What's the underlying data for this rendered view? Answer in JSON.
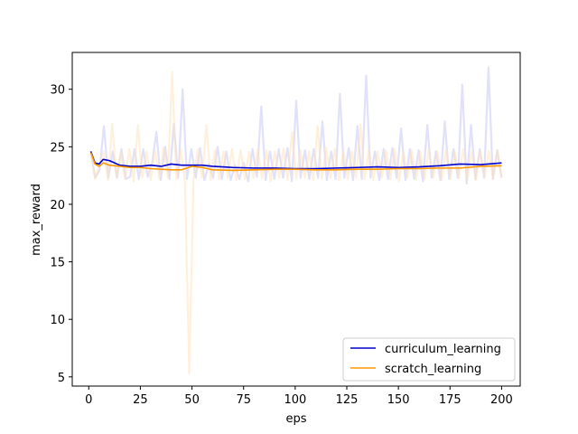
{
  "chart_data": {
    "type": "line",
    "xlabel": "eps",
    "ylabel": "max_reward",
    "xlim": [
      -8,
      209
    ],
    "ylim": [
      4.2,
      33.2
    ],
    "xticks": [
      0,
      25,
      50,
      75,
      100,
      125,
      150,
      175,
      200
    ],
    "yticks": [
      5,
      10,
      15,
      20,
      25,
      30
    ],
    "grid": false,
    "legend_placement": "lower right",
    "series": [
      {
        "name": "curriculum_learning",
        "color": "#0000cc",
        "raw_color": "#c8c8f4",
        "x": [
          1,
          3,
          5,
          7,
          10,
          15,
          20,
          25,
          30,
          35,
          40,
          45,
          50,
          55,
          60,
          70,
          80,
          90,
          100,
          110,
          120,
          130,
          140,
          150,
          160,
          170,
          180,
          190,
          200
        ],
        "values": [
          24.6,
          23.6,
          23.5,
          23.9,
          23.8,
          23.4,
          23.3,
          23.3,
          23.4,
          23.3,
          23.5,
          23.4,
          23.4,
          23.4,
          23.3,
          23.2,
          23.15,
          23.15,
          23.1,
          23.1,
          23.15,
          23.2,
          23.25,
          23.2,
          23.25,
          23.35,
          23.5,
          23.45,
          23.6
        ],
        "raw_values": [
          24.6,
          22.3,
          23.0,
          26.8,
          22.3,
          24.6,
          22.3,
          24.8,
          22.2,
          22.4,
          24.8,
          22.2,
          24.8,
          22.4,
          23.5,
          26.3,
          22.1,
          25.0,
          22.2,
          27.0,
          22.3,
          30.0,
          22.2,
          24.8,
          22.3,
          24.9,
          22.1,
          23.5,
          22.3,
          25.0,
          22.2,
          24.6,
          22.1,
          23.4,
          22.2,
          23.6,
          22.0,
          24.8,
          22.4,
          28.5,
          22.1,
          24.6,
          22.2,
          24.8,
          22.3,
          24.9,
          22.0,
          29.0,
          22.3,
          24.7,
          22.2,
          24.8,
          22.3,
          27.2,
          22.1,
          24.6,
          22.2,
          29.6,
          22.3,
          24.9,
          22.1,
          26.8,
          22.2,
          31.2,
          22.3,
          24.6,
          22.1,
          24.8,
          22.2,
          24.9,
          22.3,
          26.6,
          22.1,
          24.8,
          22.2,
          24.7,
          22.0,
          26.9,
          22.3,
          24.6,
          22.1,
          27.2,
          22.2,
          24.8,
          22.3,
          30.4,
          21.8,
          26.9,
          22.2,
          24.8,
          22.3,
          31.9,
          22.2,
          24.7,
          22.3
        ]
      },
      {
        "name": "scratch_learning",
        "color": "#ff9900",
        "raw_color": "#ffe3bf",
        "x": [
          1,
          3,
          5,
          7,
          10,
          15,
          20,
          25,
          30,
          35,
          40,
          45,
          50,
          55,
          60,
          70,
          80,
          90,
          100,
          110,
          120,
          130,
          140,
          150,
          160,
          170,
          180,
          190,
          200
        ],
        "values": [
          24.5,
          23.5,
          23.3,
          23.6,
          23.4,
          23.3,
          23.2,
          23.2,
          23.1,
          23.05,
          23.0,
          23.0,
          23.3,
          23.2,
          23.0,
          22.95,
          23.0,
          23.05,
          23.05,
          23.0,
          23.0,
          23.05,
          23.05,
          23.1,
          23.1,
          23.15,
          23.15,
          23.3,
          23.35
        ],
        "raw_values": [
          24.5,
          22.2,
          23.5,
          24.6,
          22.1,
          27.0,
          22.3,
          24.5,
          22.2,
          24.8,
          22.0,
          26.9,
          22.3,
          24.6,
          22.1,
          24.7,
          22.2,
          24.9,
          22.3,
          31.5,
          22.2,
          24.8,
          22.0,
          5.3,
          22.2,
          24.8,
          22.3,
          26.9,
          22.1,
          24.7,
          22.2,
          24.6,
          22.3,
          24.8,
          22.1,
          24.7,
          22.2,
          24.6,
          22.3,
          24.8,
          22.2,
          24.7,
          22.0,
          24.6,
          22.3,
          24.8,
          22.1,
          26.3,
          22.2,
          24.7,
          22.3,
          24.6,
          22.1,
          26.8,
          22.2,
          24.9,
          22.3,
          24.8,
          22.1,
          24.7,
          22.2,
          24.6,
          22.3,
          26.9,
          22.2,
          24.8,
          22.1,
          24.6,
          22.3,
          24.7,
          22.2,
          24.8,
          22.0,
          24.6,
          22.3,
          24.7,
          22.1,
          24.6,
          22.2,
          24.8,
          22.3,
          24.6,
          22.1,
          24.7,
          22.2,
          24.6,
          22.3,
          24.8,
          22.2,
          24.6,
          22.1,
          24.7,
          22.3,
          24.6,
          22.2,
          24.7,
          22.3
        ]
      }
    ]
  }
}
